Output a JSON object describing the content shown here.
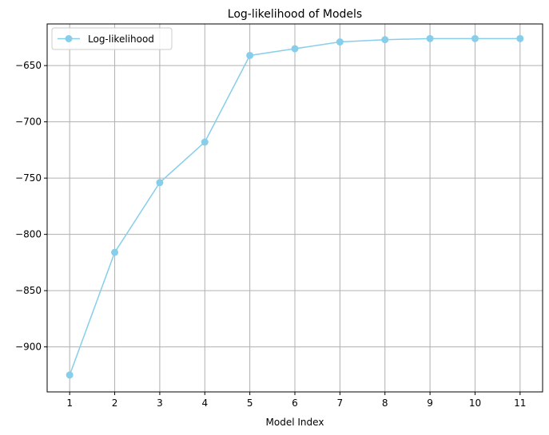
{
  "chart_data": {
    "type": "line",
    "title": "Log-likelihood of Models",
    "xlabel": "Model Index",
    "ylabel": "",
    "x": [
      1,
      2,
      3,
      4,
      5,
      6,
      7,
      8,
      9,
      10,
      11
    ],
    "series": [
      {
        "name": "Log-likelihood",
        "values": [
          -925,
          -816,
          -754,
          -718,
          -641,
          -635,
          -629,
          -627,
          -626,
          -626,
          -626
        ],
        "color": "#87ceeb",
        "marker": "circle"
      }
    ],
    "xlim": [
      0.5,
      11.5
    ],
    "ylim": [
      -940,
      -613
    ],
    "xticks": [
      1,
      2,
      3,
      4,
      5,
      6,
      7,
      8,
      9,
      10,
      11
    ],
    "yticks": [
      -900,
      -850,
      -800,
      -750,
      -700,
      -650
    ],
    "ytick_labels": [
      "−900",
      "−850",
      "−800",
      "−750",
      "−700",
      "−650"
    ],
    "grid": true,
    "grid_color": "#b0b0b0",
    "legend_position": "top-left"
  }
}
